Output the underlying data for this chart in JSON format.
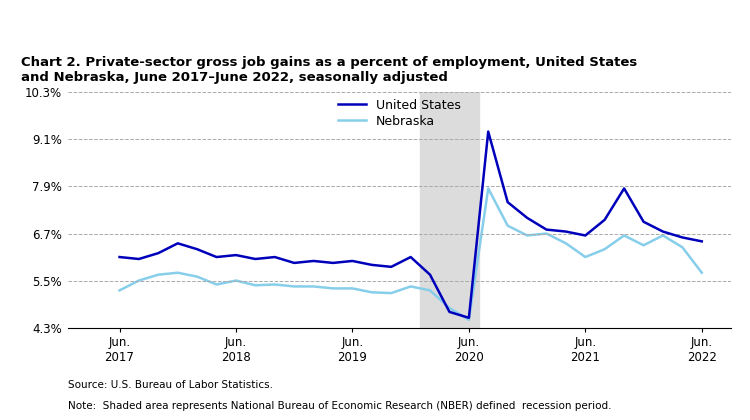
{
  "title_line1": "Chart 2. Private-sector gross job gains as a percent of employment, United States",
  "title_line2": "and Nebraska, June 2017–June 2022, seasonally adjusted",
  "source": "Source: U.S. Bureau of Labor Statistics.",
  "note": "Note:  Shaded area represents National Bureau of Economic Research (NBER) defined  recession period.",
  "us_color": "#0000BB",
  "ne_color": "#87CEEB",
  "recession_color": "#DCDCDC",
  "recession_start": 2020.0,
  "recession_end": 2020.5,
  "ylim": [
    4.3,
    10.3
  ],
  "yticks": [
    4.3,
    5.5,
    6.7,
    7.9,
    9.1,
    10.3
  ],
  "ytick_labels": [
    "4.3%",
    "5.5%",
    "6.7%",
    "7.9%",
    "9.1%",
    "10.3%"
  ],
  "xlim_start": 2016.97,
  "xlim_end": 2022.67,
  "xticks": [
    2017.417,
    2018.417,
    2019.417,
    2020.417,
    2021.417,
    2022.417
  ],
  "xtick_labels": [
    "Jun.\n2017",
    "Jun.\n2018",
    "Jun.\n2019",
    "Jun.\n2020",
    "Jun.\n2021",
    "Jun.\n2022"
  ],
  "us_x": [
    2017.417,
    2017.583,
    2017.75,
    2017.917,
    2018.083,
    2018.25,
    2018.417,
    2018.583,
    2018.75,
    2018.917,
    2019.083,
    2019.25,
    2019.417,
    2019.583,
    2019.75,
    2019.917,
    2020.083,
    2020.25,
    2020.417,
    2020.583,
    2020.75,
    2020.917,
    2021.083,
    2021.25,
    2021.417,
    2021.583,
    2021.75,
    2021.917,
    2022.083,
    2022.25,
    2022.417
  ],
  "us_y": [
    6.1,
    6.05,
    6.2,
    6.45,
    6.3,
    6.1,
    6.15,
    6.05,
    6.1,
    5.95,
    6.0,
    5.95,
    6.0,
    5.9,
    5.85,
    6.1,
    5.65,
    4.7,
    4.55,
    9.3,
    7.5,
    7.1,
    6.8,
    6.75,
    6.65,
    7.05,
    7.85,
    7.0,
    6.75,
    6.6,
    6.5
  ],
  "ne_x": [
    2017.417,
    2017.583,
    2017.75,
    2017.917,
    2018.083,
    2018.25,
    2018.417,
    2018.583,
    2018.75,
    2018.917,
    2019.083,
    2019.25,
    2019.417,
    2019.583,
    2019.75,
    2019.917,
    2020.083,
    2020.25,
    2020.417,
    2020.583,
    2020.75,
    2020.917,
    2021.083,
    2021.25,
    2021.417,
    2021.583,
    2021.75,
    2021.917,
    2022.083,
    2022.25,
    2022.417
  ],
  "ne_y": [
    5.25,
    5.5,
    5.65,
    5.7,
    5.6,
    5.4,
    5.5,
    5.38,
    5.4,
    5.35,
    5.35,
    5.3,
    5.3,
    5.2,
    5.18,
    5.35,
    5.25,
    4.8,
    4.5,
    7.85,
    6.9,
    6.65,
    6.7,
    6.45,
    6.1,
    6.3,
    6.65,
    6.4,
    6.65,
    6.35,
    5.7
  ],
  "legend_us": "United States",
  "legend_ne": "Nebraska",
  "line_width": 1.8
}
